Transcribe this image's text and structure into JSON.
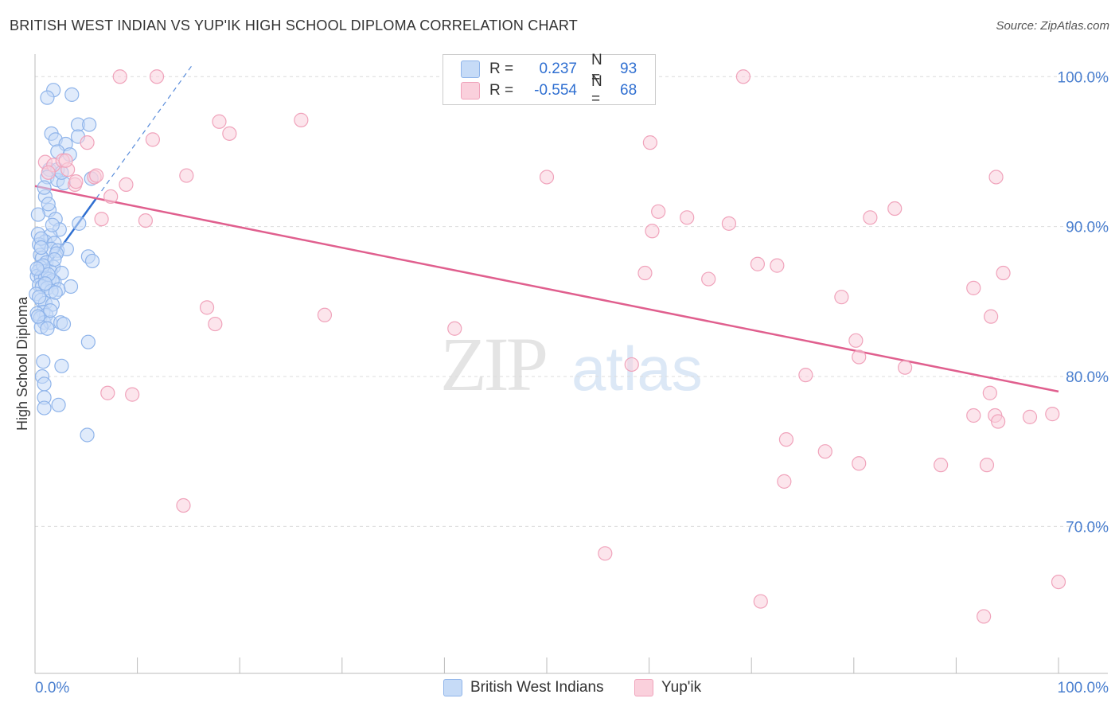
{
  "title": "BRITISH WEST INDIAN VS YUP'IK HIGH SCHOOL DIPLOMA CORRELATION CHART",
  "source": "Source: ZipAtlas.com",
  "watermark": {
    "zip": "ZIP",
    "atlas": "atlas"
  },
  "stats": [
    {
      "r_label": "R =",
      "r_value": "0.237",
      "n_label": "N =",
      "n_value": "93",
      "color": "#2f6fd1"
    },
    {
      "r_label": "R =",
      "r_value": "-0.554",
      "n_label": "N =",
      "n_value": "68",
      "color": "#e05f8e"
    }
  ],
  "legend": [
    {
      "label": "British West Indians"
    },
    {
      "label": "Yup'ik"
    }
  ],
  "chart_data": {
    "type": "scatter",
    "title": "BRITISH WEST INDIAN VS YUP'IK HIGH SCHOOL DIPLOMA CORRELATION CHART",
    "xlabel": "",
    "ylabel": "High School Diploma",
    "xlim": [
      0,
      100
    ],
    "ylim": [
      60.2,
      101.5
    ],
    "x_tick_labels": [
      {
        "value": 0,
        "label": "0.0%"
      },
      {
        "value": 100,
        "label": "100.0%"
      }
    ],
    "x_minor_ticks": [
      10,
      20,
      30,
      40,
      50,
      60,
      70,
      80,
      90,
      100
    ],
    "y_ticks": [
      {
        "value": 70,
        "label": "70.0%"
      },
      {
        "value": 80,
        "label": "80.0%"
      },
      {
        "value": 90,
        "label": "90.0%"
      },
      {
        "value": 100,
        "label": "100.0%"
      }
    ],
    "grid": true,
    "series": [
      {
        "name": "British West Indians",
        "color": "#8fb4ea",
        "fill": "#c6dbf7",
        "trend": {
          "x": [
            0.4,
            6.0
          ],
          "y": [
            86.6,
            91.9
          ],
          "color": "#2f6fd1",
          "dashed_to": {
            "x": 15.5,
            "y": 100.9
          }
        },
        "points": [
          [
            1.8,
            99.1
          ],
          [
            1.2,
            98.6
          ],
          [
            3.6,
            98.8
          ],
          [
            4.2,
            96.8
          ],
          [
            5.3,
            96.8
          ],
          [
            1.6,
            96.2
          ],
          [
            4.2,
            96.0
          ],
          [
            2.0,
            95.8
          ],
          [
            3.0,
            95.5
          ],
          [
            2.2,
            95.0
          ],
          [
            3.4,
            94.8
          ],
          [
            1.4,
            93.8
          ],
          [
            2.2,
            93.8
          ],
          [
            1.2,
            93.3
          ],
          [
            2.2,
            93.1
          ],
          [
            2.8,
            92.9
          ],
          [
            5.5,
            93.2
          ],
          [
            1.0,
            92.0
          ],
          [
            1.4,
            91.1
          ],
          [
            2.0,
            90.5
          ],
          [
            4.3,
            90.2
          ],
          [
            2.4,
            89.8
          ],
          [
            0.3,
            89.5
          ],
          [
            1.5,
            89.4
          ],
          [
            1.0,
            89.0
          ],
          [
            1.9,
            88.9
          ],
          [
            0.4,
            88.8
          ],
          [
            1.6,
            88.5
          ],
          [
            2.2,
            88.4
          ],
          [
            3.1,
            88.5
          ],
          [
            0.5,
            88.1
          ],
          [
            0.7,
            87.9
          ],
          [
            5.2,
            88.0
          ],
          [
            5.6,
            87.7
          ],
          [
            1.1,
            87.6
          ],
          [
            0.5,
            87.3
          ],
          [
            1.8,
            87.3
          ],
          [
            0.3,
            87.0
          ],
          [
            0.9,
            87.0
          ],
          [
            1.5,
            87.0
          ],
          [
            2.6,
            86.9
          ],
          [
            0.2,
            86.7
          ],
          [
            0.6,
            86.6
          ],
          [
            1.0,
            86.6
          ],
          [
            1.4,
            86.5
          ],
          [
            1.9,
            86.3
          ],
          [
            1.7,
            86.4
          ],
          [
            0.4,
            86.1
          ],
          [
            0.7,
            86.0
          ],
          [
            1.2,
            85.9
          ],
          [
            2.3,
            85.8
          ],
          [
            3.5,
            86.0
          ],
          [
            1.6,
            85.7
          ],
          [
            0.1,
            85.5
          ],
          [
            0.6,
            85.1
          ],
          [
            1.0,
            84.9
          ],
          [
            1.7,
            84.8
          ],
          [
            0.8,
            84.3
          ],
          [
            0.2,
            84.2
          ],
          [
            1.1,
            84.1
          ],
          [
            0.5,
            83.9
          ],
          [
            0.9,
            83.6
          ],
          [
            1.5,
            83.6
          ],
          [
            2.5,
            83.6
          ],
          [
            2.8,
            83.5
          ],
          [
            0.6,
            83.3
          ],
          [
            5.2,
            82.3
          ],
          [
            0.8,
            81.0
          ],
          [
            2.6,
            80.7
          ],
          [
            0.7,
            80.0
          ],
          [
            0.9,
            79.5
          ],
          [
            0.9,
            78.6
          ],
          [
            2.3,
            78.1
          ],
          [
            0.9,
            77.9
          ],
          [
            5.1,
            76.1
          ],
          [
            0.3,
            90.8
          ],
          [
            1.3,
            91.5
          ],
          [
            0.6,
            89.2
          ],
          [
            2.1,
            88.2
          ],
          [
            1.9,
            87.8
          ],
          [
            0.8,
            87.4
          ],
          [
            1.3,
            86.8
          ],
          [
            1.0,
            86.2
          ],
          [
            2.0,
            85.6
          ],
          [
            0.4,
            85.3
          ],
          [
            1.5,
            84.4
          ],
          [
            0.3,
            84.0
          ],
          [
            1.2,
            83.2
          ],
          [
            0.6,
            88.6
          ],
          [
            1.7,
            90.1
          ],
          [
            0.9,
            92.6
          ],
          [
            2.6,
            93.6
          ],
          [
            0.2,
            87.2
          ]
        ]
      },
      {
        "name": "Yup'ik",
        "color": "#f0a3bb",
        "fill": "#fad0dc",
        "trend": {
          "x": [
            0.0,
            100.0
          ],
          "y": [
            92.7,
            79.0
          ],
          "color": "#e05f8e"
        },
        "points": [
          [
            8.3,
            100.0
          ],
          [
            11.9,
            100.0
          ],
          [
            69.2,
            100.0
          ],
          [
            18.0,
            97.0
          ],
          [
            26.0,
            97.1
          ],
          [
            19.0,
            96.2
          ],
          [
            5.1,
            95.6
          ],
          [
            11.5,
            95.8
          ],
          [
            60.1,
            95.6
          ],
          [
            1.0,
            94.3
          ],
          [
            1.8,
            94.1
          ],
          [
            2.7,
            94.4
          ],
          [
            3.2,
            93.8
          ],
          [
            5.8,
            93.3
          ],
          [
            14.8,
            93.4
          ],
          [
            50.0,
            93.3
          ],
          [
            93.9,
            93.3
          ],
          [
            8.9,
            92.8
          ],
          [
            3.9,
            92.8
          ],
          [
            7.4,
            92.0
          ],
          [
            84.0,
            91.2
          ],
          [
            6.5,
            90.5
          ],
          [
            10.8,
            90.4
          ],
          [
            60.9,
            91.0
          ],
          [
            63.7,
            90.6
          ],
          [
            81.6,
            90.6
          ],
          [
            67.8,
            90.2
          ],
          [
            60.3,
            89.7
          ],
          [
            70.6,
            87.5
          ],
          [
            72.5,
            87.4
          ],
          [
            94.6,
            86.9
          ],
          [
            59.6,
            86.9
          ],
          [
            65.8,
            86.5
          ],
          [
            91.7,
            85.9
          ],
          [
            78.8,
            85.3
          ],
          [
            16.8,
            84.6
          ],
          [
            28.3,
            84.1
          ],
          [
            17.6,
            83.5
          ],
          [
            93.4,
            84.0
          ],
          [
            41.0,
            83.2
          ],
          [
            80.2,
            82.4
          ],
          [
            80.5,
            81.3
          ],
          [
            58.3,
            80.8
          ],
          [
            85.0,
            80.6
          ],
          [
            75.3,
            80.1
          ],
          [
            93.3,
            78.9
          ],
          [
            7.1,
            78.9
          ],
          [
            9.5,
            78.8
          ],
          [
            91.7,
            77.4
          ],
          [
            93.8,
            77.4
          ],
          [
            94.1,
            77.0
          ],
          [
            97.2,
            77.3
          ],
          [
            99.4,
            77.5
          ],
          [
            73.4,
            75.8
          ],
          [
            77.2,
            75.0
          ],
          [
            80.5,
            74.2
          ],
          [
            88.5,
            74.1
          ],
          [
            93.0,
            74.1
          ],
          [
            73.2,
            73.0
          ],
          [
            14.5,
            71.4
          ],
          [
            55.7,
            68.2
          ],
          [
            70.9,
            65.0
          ],
          [
            92.7,
            64.0
          ],
          [
            100.0,
            66.3
          ],
          [
            1.3,
            93.6
          ],
          [
            3.0,
            94.4
          ],
          [
            4.0,
            93.0
          ],
          [
            6.0,
            93.4
          ]
        ]
      }
    ]
  }
}
